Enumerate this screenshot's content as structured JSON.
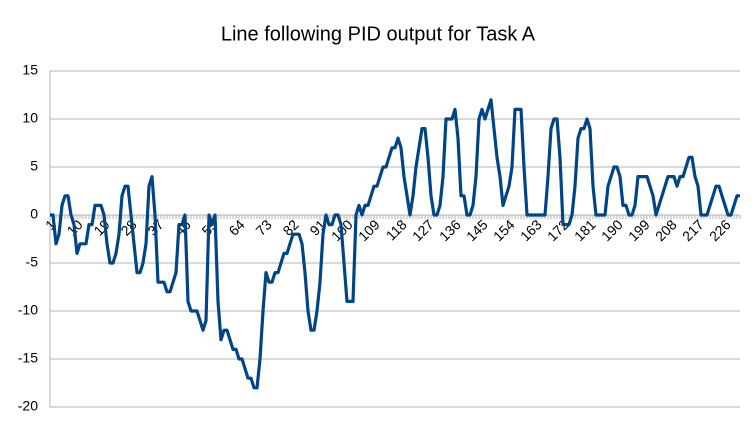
{
  "chart_data": {
    "type": "line",
    "title": "Line following PID output for Task A",
    "x": [
      1,
      2,
      3,
      4,
      5,
      6,
      7,
      8,
      9,
      10,
      11,
      12,
      13,
      14,
      15,
      16,
      17,
      18,
      19,
      20,
      21,
      22,
      23,
      24,
      25,
      26,
      27,
      28,
      29,
      30,
      31,
      32,
      33,
      34,
      35,
      36,
      37,
      38,
      39,
      40,
      41,
      42,
      43,
      44,
      45,
      46,
      47,
      48,
      49,
      50,
      51,
      52,
      53,
      54,
      55,
      56,
      57,
      58,
      59,
      60,
      61,
      62,
      63,
      64,
      65,
      66,
      67,
      68,
      69,
      70,
      71,
      72,
      73,
      74,
      75,
      76,
      77,
      78,
      79,
      80,
      81,
      82,
      83,
      84,
      85,
      86,
      87,
      88,
      89,
      90,
      91,
      92,
      93,
      94,
      95,
      96,
      97,
      98,
      99,
      100,
      101,
      102,
      103,
      104,
      105,
      106,
      107,
      108,
      109,
      110,
      111,
      112,
      113,
      114,
      115,
      116,
      117,
      118,
      119,
      120,
      121,
      122,
      123,
      124,
      125,
      126,
      127,
      128,
      129,
      130,
      131,
      132,
      133,
      134,
      135,
      136,
      137,
      138,
      139,
      140,
      141,
      142,
      143,
      144,
      145,
      146,
      147,
      148,
      149,
      150,
      151,
      152,
      153,
      154,
      155,
      156,
      157,
      158,
      159,
      160,
      161,
      162,
      163,
      164,
      165,
      166,
      167,
      168,
      169,
      170,
      171,
      172,
      173,
      174,
      175,
      176,
      177,
      178,
      179,
      180,
      181,
      182,
      183,
      184,
      185,
      186,
      187,
      188,
      189,
      190,
      191,
      192,
      193,
      194,
      195,
      196,
      197,
      198,
      199,
      200,
      201,
      202,
      203,
      204,
      205,
      206,
      207,
      208,
      209,
      210,
      211,
      212,
      213,
      214,
      215,
      216,
      217,
      218,
      219,
      220,
      221,
      222,
      223,
      224,
      225,
      226,
      227,
      228,
      229,
      230,
      231
    ],
    "series": [
      {
        "color": "#004586",
        "values": [
          0,
          0,
          -3,
          -2,
          1,
          2,
          2,
          0,
          -1,
          -4,
          -3,
          -3,
          -3,
          -1,
          -1,
          1,
          1,
          1,
          0,
          -3,
          -5,
          -5,
          -4,
          -2,
          2,
          3,
          3,
          0,
          -3,
          -6,
          -6,
          -5,
          -3,
          3,
          4,
          0,
          -7,
          -7,
          -7,
          -8,
          -8,
          -7,
          -6,
          -1,
          -1,
          0,
          -9,
          -10,
          -10,
          -10,
          -11,
          -12,
          -11,
          0,
          -1,
          0,
          -9,
          -13,
          -12,
          -12,
          -13,
          -14,
          -14,
          -15,
          -15,
          -16,
          -17,
          -17,
          -18,
          -18,
          -15,
          -10,
          -6,
          -7,
          -7,
          -6,
          -6,
          -5,
          -4,
          -4,
          -3,
          -2,
          -2,
          -2,
          -3,
          -6,
          -10,
          -12,
          -12,
          -10,
          -7,
          -2,
          0,
          -1,
          -1,
          0,
          0,
          -1,
          -5,
          -9,
          -9,
          -9,
          0,
          1,
          0,
          1,
          1,
          2,
          3,
          3,
          4,
          5,
          5,
          6,
          7,
          7,
          8,
          7,
          4,
          2,
          0,
          2,
          5,
          7,
          9,
          9,
          6,
          2,
          0,
          0,
          1,
          4,
          10,
          10,
          10,
          11,
          8,
          2,
          2,
          0,
          0,
          1,
          4,
          10,
          11,
          10,
          11,
          12,
          9,
          6,
          4,
          1,
          2,
          3,
          5,
          11,
          11,
          11,
          5,
          0,
          0,
          0,
          0,
          0,
          0,
          0,
          4,
          9,
          10,
          10,
          6,
          -1,
          -1,
          -1,
          0,
          3,
          8,
          9,
          9,
          10,
          9,
          3,
          0,
          0,
          0,
          0,
          3,
          4,
          5,
          5,
          4,
          1,
          1,
          0,
          0,
          1,
          4,
          4,
          4,
          4,
          3,
          2,
          0,
          1,
          2,
          3,
          4,
          4,
          4,
          3,
          4,
          4,
          5,
          6,
          6,
          4,
          3,
          0,
          0,
          0,
          1,
          2,
          3,
          3,
          2,
          1,
          0,
          0,
          1,
          2,
          2
        ]
      }
    ],
    "xlim": [
      1,
      231
    ],
    "xticks": [
      1,
      10,
      19,
      28,
      37,
      46,
      55,
      64,
      73,
      82,
      91,
      100,
      109,
      118,
      127,
      136,
      145,
      154,
      163,
      172,
      181,
      190,
      199,
      208,
      217,
      226
    ],
    "ylim": [
      -20,
      15
    ],
    "yticks": [
      -20,
      -15,
      -10,
      -5,
      0,
      5,
      10,
      15
    ],
    "grid": true
  }
}
